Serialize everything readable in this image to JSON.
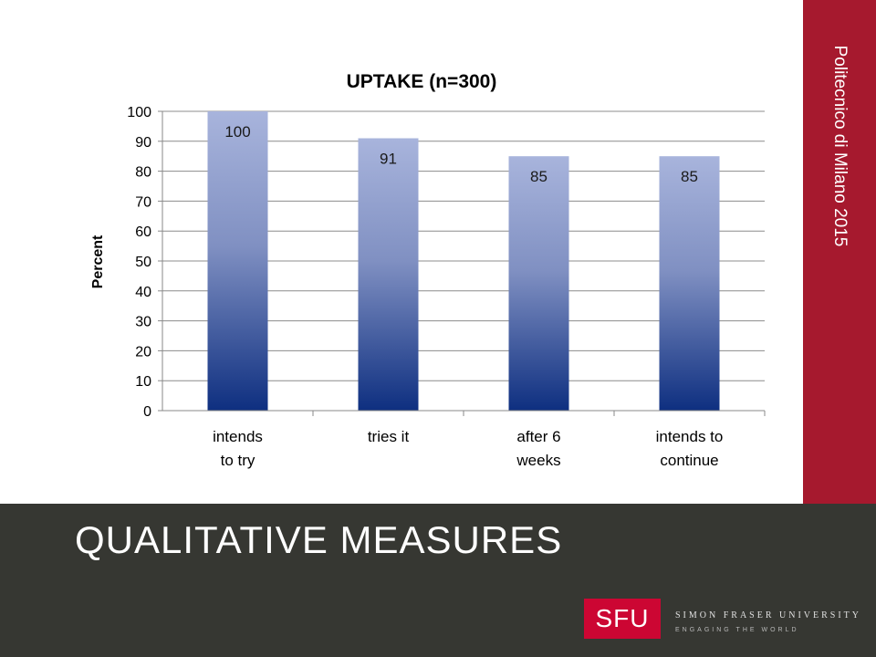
{
  "slide": {
    "side_label": "Politecnico di Milano 2015",
    "footer_title": "QUALITATIVE MEASURES",
    "logo_mark": "SFU",
    "logo_name": "SIMON FRASER UNIVERSITY",
    "logo_tagline": "ENGAGING THE WORLD"
  },
  "colors": {
    "side_band": "#a6192e",
    "footer": "#363732",
    "logo": "#cc0633",
    "bar_top": "#a8b4dc",
    "bar_bottom": "#0e2f80"
  },
  "chart_data": {
    "type": "bar",
    "title": "UPTAKE (n=300)",
    "xlabel": "",
    "ylabel": "Percent",
    "categories": [
      [
        "intends",
        "to try"
      ],
      [
        "tries it"
      ],
      [
        "after 6",
        "weeks"
      ],
      [
        "intends to",
        "continue"
      ]
    ],
    "values": [
      100,
      91,
      85,
      85
    ],
    "data_labels": [
      "100",
      "91",
      "85",
      "85"
    ],
    "ylim": [
      0,
      100
    ],
    "yticks": [
      0,
      10,
      20,
      30,
      40,
      50,
      60,
      70,
      80,
      90,
      100
    ],
    "grid": true,
    "legend": "none"
  }
}
